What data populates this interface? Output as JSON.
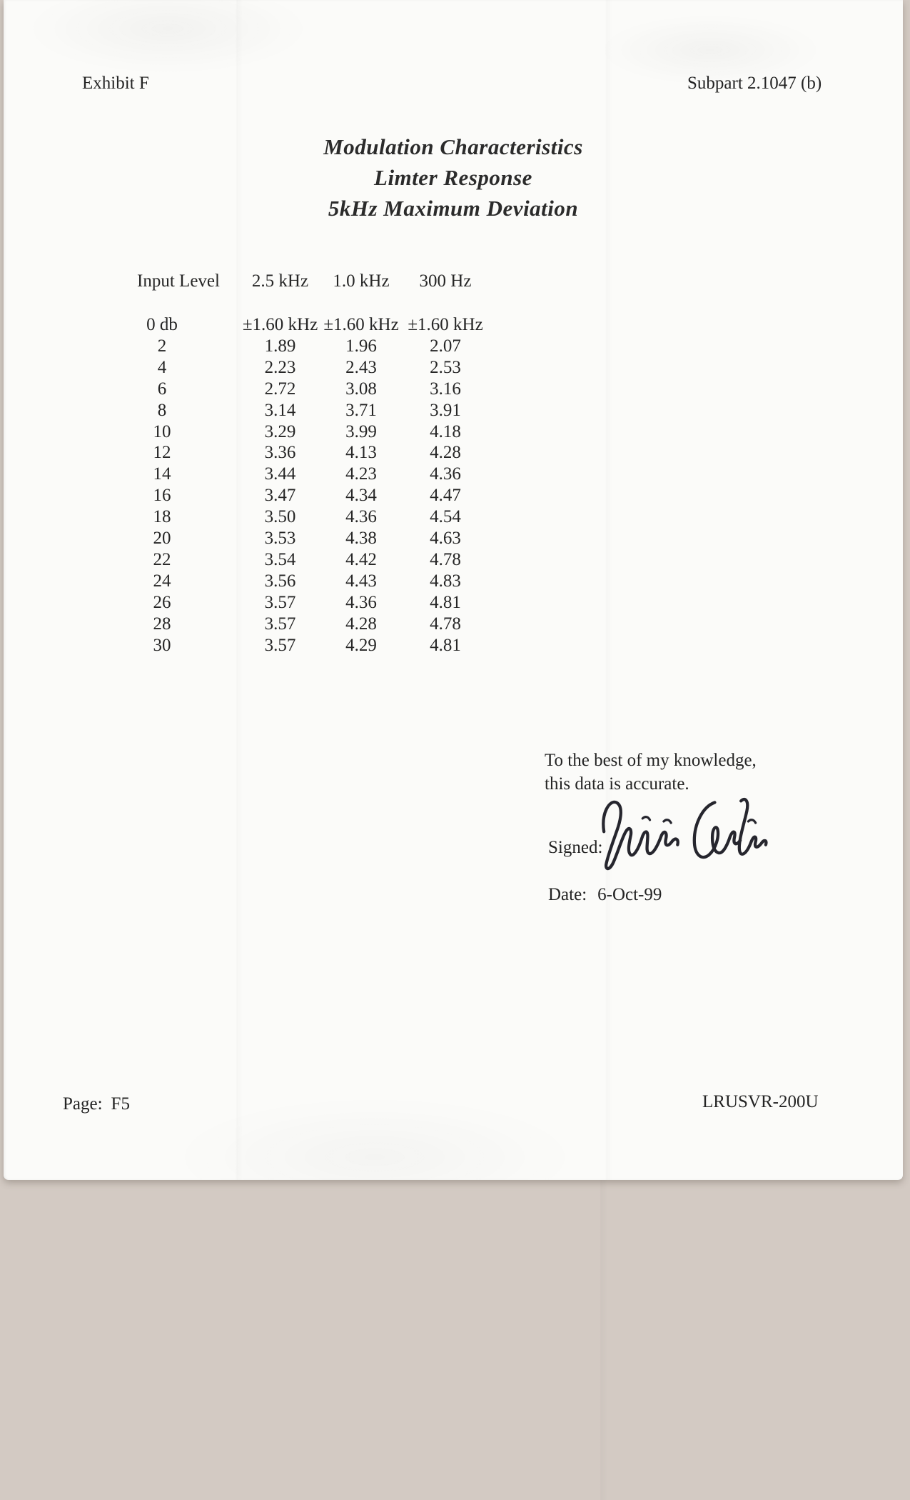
{
  "document": {
    "exhibit_label": "Exhibit F",
    "subpart_label": "Subpart 2.1047 (b)",
    "title_lines": [
      "Modulation Characteristics",
      "Limter Response",
      "5kHz Maximum Deviation"
    ],
    "attestation": {
      "line1": "To the best of my knowledge,",
      "line2": "this data is accurate.",
      "signed_label": "Signed:",
      "date_label": "Date:",
      "date_value": "6-Oct-99"
    },
    "footer": {
      "page_label": "Page:",
      "page_number": "F5",
      "model_number": "LRUSVR-200U"
    }
  },
  "table": {
    "headers": [
      "Input Level",
      "2.5 kHz",
      "1.0 kHz",
      "300 Hz"
    ],
    "rows": [
      [
        "0 db",
        "±1.60 kHz",
        "±1.60 kHz",
        "±1.60 kHz"
      ],
      [
        "2",
        "1.89",
        "1.96",
        "2.07"
      ],
      [
        "4",
        "2.23",
        "2.43",
        "2.53"
      ],
      [
        "6",
        "2.72",
        "3.08",
        "3.16"
      ],
      [
        "8",
        "3.14",
        "3.71",
        "3.91"
      ],
      [
        "10",
        "3.29",
        "3.99",
        "4.18"
      ],
      [
        "12",
        "3.36",
        "4.13",
        "4.28"
      ],
      [
        "14",
        "3.44",
        "4.23",
        "4.36"
      ],
      [
        "16",
        "3.47",
        "4.34",
        "4.47"
      ],
      [
        "18",
        "3.50",
        "4.36",
        "4.54"
      ],
      [
        "20",
        "3.53",
        "4.38",
        "4.63"
      ],
      [
        "22",
        "3.54",
        "4.42",
        "4.78"
      ],
      [
        "24",
        "3.56",
        "4.43",
        "4.83"
      ],
      [
        "26",
        "3.57",
        "4.36",
        "4.81"
      ],
      [
        "28",
        "3.57",
        "4.28",
        "4.78"
      ],
      [
        "30",
        "3.57",
        "4.29",
        "4.81"
      ]
    ]
  },
  "signature": {
    "description": "handwritten signature in ink",
    "ink_color": "#26262e"
  },
  "colors": {
    "scanner_background": "#d3cac3",
    "paper": "#fbfbf9",
    "text": "#242424"
  }
}
